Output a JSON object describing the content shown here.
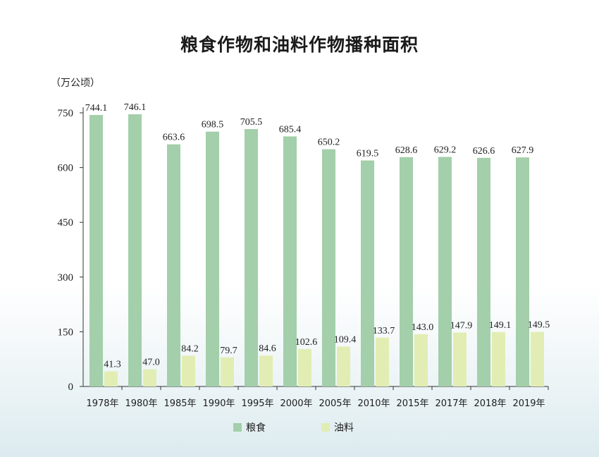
{
  "chart_data": {
    "type": "bar",
    "title": "粮食作物和油料作物播种面积",
    "unit_label": "（万公顷）",
    "categories": [
      "1978年",
      "1980年",
      "1985年",
      "1990年",
      "1995年",
      "2000年",
      "2005年",
      "2010年",
      "2015年",
      "2017年",
      "2018年",
      "2019年"
    ],
    "series": [
      {
        "name": "粮食",
        "color": "#a3cfaa",
        "values": [
          744.1,
          746.1,
          663.6,
          698.5,
          705.5,
          685.4,
          650.2,
          619.5,
          628.6,
          629.2,
          626.6,
          627.9
        ]
      },
      {
        "name": "油料",
        "color": "#e2edb4",
        "values": [
          41.3,
          47.0,
          84.2,
          79.7,
          84.6,
          102.6,
          109.4,
          133.7,
          143.0,
          147.9,
          149.1,
          149.5
        ]
      }
    ],
    "ylim": [
      0,
      750
    ],
    "yticks": [
      0,
      150,
      300,
      450,
      600,
      750
    ],
    "grid": false,
    "legend_position": "bottom-center"
  }
}
